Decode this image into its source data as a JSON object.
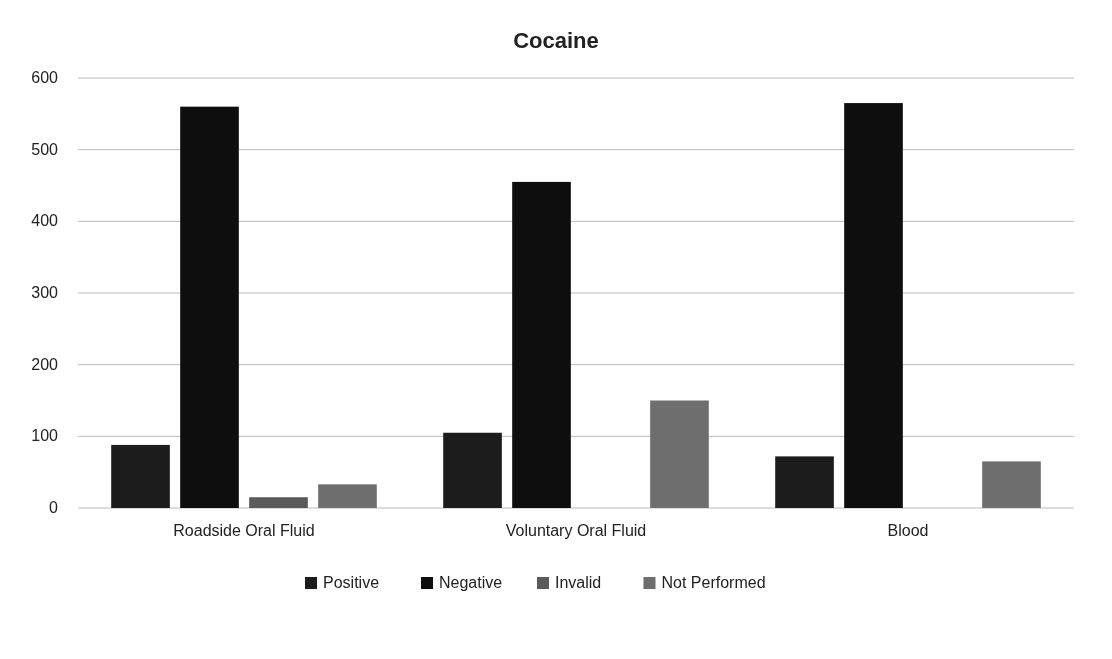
{
  "chart_data": {
    "type": "bar",
    "title": "Cocaine",
    "categories": [
      "Roadside Oral Fluid",
      "Voluntary Oral Fluid",
      "Blood"
    ],
    "series": [
      {
        "name": "Positive",
        "color": "#1c1c1c",
        "values": [
          88,
          105,
          72
        ]
      },
      {
        "name": "Negative",
        "color": "#0e0e0e",
        "values": [
          560,
          455,
          565
        ]
      },
      {
        "name": "Invalid",
        "color": "#5a5a5a",
        "values": [
          15,
          0,
          0
        ]
      },
      {
        "name": "Not Performed",
        "color": "#6e6e6e",
        "values": [
          33,
          150,
          65
        ]
      }
    ],
    "ylim": [
      0,
      600
    ],
    "yticks": [
      0,
      100,
      200,
      300,
      400,
      500,
      600
    ],
    "grid": "y",
    "legend": "bottom"
  }
}
